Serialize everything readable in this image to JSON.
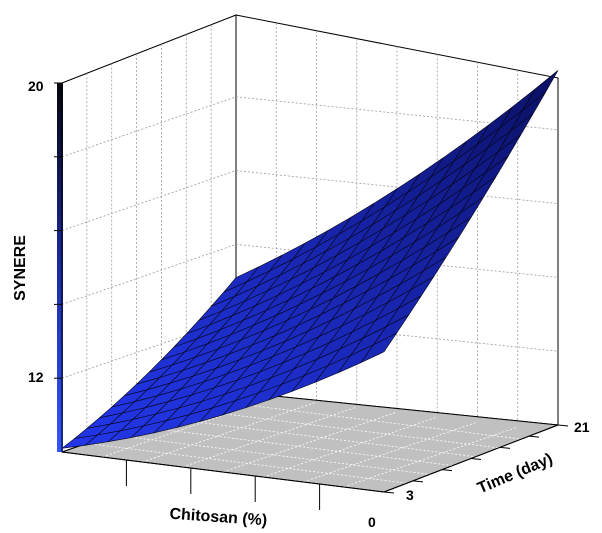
{
  "chart_data": {
    "type": "surface",
    "title": "",
    "zlabel": "SYNERE",
    "xlabel": "Chitosan (%)",
    "ylabel": "Time (day)",
    "z_ticks": [
      "12",
      "20"
    ],
    "z_minor_ticks": [
      14,
      16,
      18
    ],
    "zlim": [
      10,
      20
    ],
    "x_ticks": [
      "0"
    ],
    "y_ticks": [
      "3",
      "21"
    ],
    "xlim": [
      0,
      1
    ],
    "ylim": [
      0,
      21
    ],
    "grid": true,
    "colormap": [
      "#0a0a14",
      "#2233cc",
      "#3355ff"
    ],
    "surface_color": "#1f2bc8",
    "surface_dark": "#0e1460",
    "floor_color": "#bfbfbf",
    "corner_values": [
      {
        "chitosan": 1,
        "time": 0,
        "synere": 10.1
      },
      {
        "chitosan": 0,
        "time": 0,
        "synere": 13.8
      },
      {
        "chitosan": 1,
        "time": 21,
        "synere": 13.1
      },
      {
        "chitosan": 0,
        "time": 21,
        "synere": 19.8
      }
    ]
  }
}
